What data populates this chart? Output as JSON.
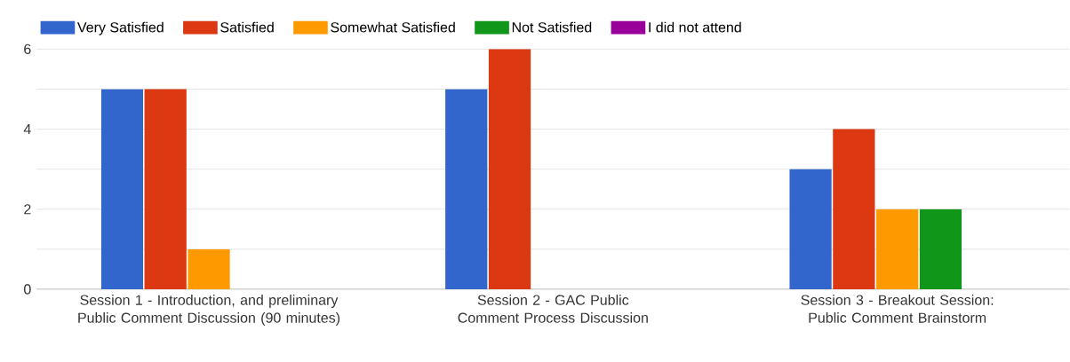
{
  "chart_data": {
    "type": "bar",
    "categories": [
      "Session 1 - Introduction, and preliminary Public Comment Discussion (90 minutes)",
      "Session 2 - GAC Public Comment Process Discussion",
      "Session 3 - Breakout Session: Public Comment Brainstorm"
    ],
    "series": [
      {
        "name": "Very Satisfied",
        "color": "#3366cc",
        "values": [
          5,
          5,
          3
        ]
      },
      {
        "name": "Satisfied",
        "color": "#dc3912",
        "values": [
          5,
          6,
          4
        ]
      },
      {
        "name": "Somewhat Satisfied",
        "color": "#ff9900",
        "values": [
          1,
          0,
          2
        ]
      },
      {
        "name": "Not Satisfied",
        "color": "#109618",
        "values": [
          0,
          0,
          2
        ]
      },
      {
        "name": "I did not attend",
        "color": "#990099",
        "values": [
          0,
          0,
          0
        ]
      }
    ],
    "ylim": [
      0,
      6
    ],
    "yticks": [
      0,
      {
        "value": 1,
        "label": null
      },
      2,
      {
        "value": 3,
        "label": null
      },
      4,
      {
        "value": 5,
        "label": null
      },
      6
    ],
    "grid": "y",
    "legend": "top left"
  }
}
